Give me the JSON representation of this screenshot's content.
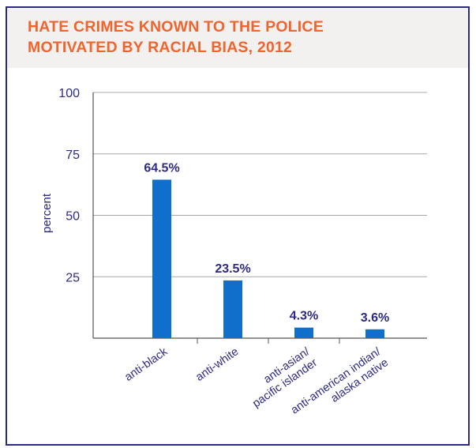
{
  "chart_data": {
    "type": "bar",
    "title_lines": [
      "HATE CRIMES KNOWN TO THE POLICE",
      "MOTIVATED BY RACIAL BIAS, 2012"
    ],
    "ylabel": "percent",
    "xlabel": "",
    "ylim": [
      0,
      100
    ],
    "yticks": [
      25,
      50,
      75,
      100
    ],
    "grid": true,
    "categories": [
      [
        "anti-black"
      ],
      [
        "anti-white"
      ],
      [
        "anti-asian/",
        "pacific islander"
      ],
      [
        "anti-american indian/",
        "alaska native"
      ]
    ],
    "values": [
      64.5,
      23.5,
      4.3,
      3.6
    ],
    "value_labels": [
      "64.5%",
      "23.5%",
      "4.3%",
      "3.6%"
    ],
    "colors": {
      "bar": "#0f6fcb",
      "text": "#2c2a83",
      "title": "#f0642e",
      "grid": "#a8a8a8",
      "axis": "#555555"
    }
  }
}
